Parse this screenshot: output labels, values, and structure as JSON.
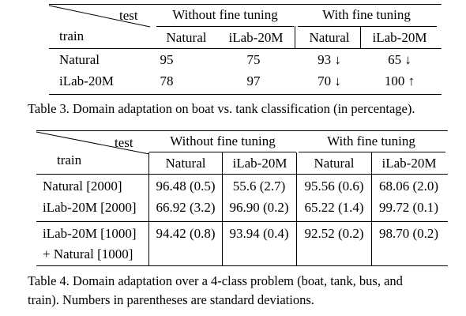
{
  "table3": {
    "header": {
      "test": "test",
      "train": "train",
      "group_without": "Without fine tuning",
      "group_with": "With fine tuning",
      "cols": [
        "Natural",
        "iLab-20M",
        "Natural",
        "iLab-20M"
      ]
    },
    "rows": [
      {
        "label": "Natural",
        "cells": [
          "95",
          "75",
          "93 ↓",
          "65 ↓"
        ]
      },
      {
        "label": "iLab-20M",
        "cells": [
          "78",
          "97",
          "70 ↓",
          "100 ↑"
        ]
      }
    ],
    "caption": "Table 3. Domain adaptation on boat vs. tank classification (in percentage)."
  },
  "table4": {
    "header": {
      "test": "test",
      "train": "train",
      "group_without": "Without fine tuning",
      "group_with": "With fine tuning",
      "cols": [
        "Natural",
        "iLab-20M",
        "Natural",
        "iLab-20M"
      ]
    },
    "rows": [
      {
        "label": "Natural [2000]",
        "cells": [
          "96.48 (0.5)",
          "55.6 (2.7)",
          "95.56 (0.6)",
          "68.06 (2.0)"
        ]
      },
      {
        "label": "iLab-20M [2000]",
        "cells": [
          "66.92 (3.2)",
          "96.90 (0.2)",
          "65.22 (1.4)",
          "99.72 (0.1)"
        ]
      },
      {
        "label": "iLab-20M [1000]",
        "label2": "+ Natural [1000]",
        "cells": [
          "94.42 (0.8)",
          "93.94 (0.4)",
          "92.52 (0.2)",
          "98.70 (0.2)"
        ]
      }
    ],
    "caption_line1": "Table 4. Domain adaptation over a 4-class problem (boat, tank, bus, and",
    "caption_line2": "train). Numbers in parentheses are standard deviations."
  }
}
